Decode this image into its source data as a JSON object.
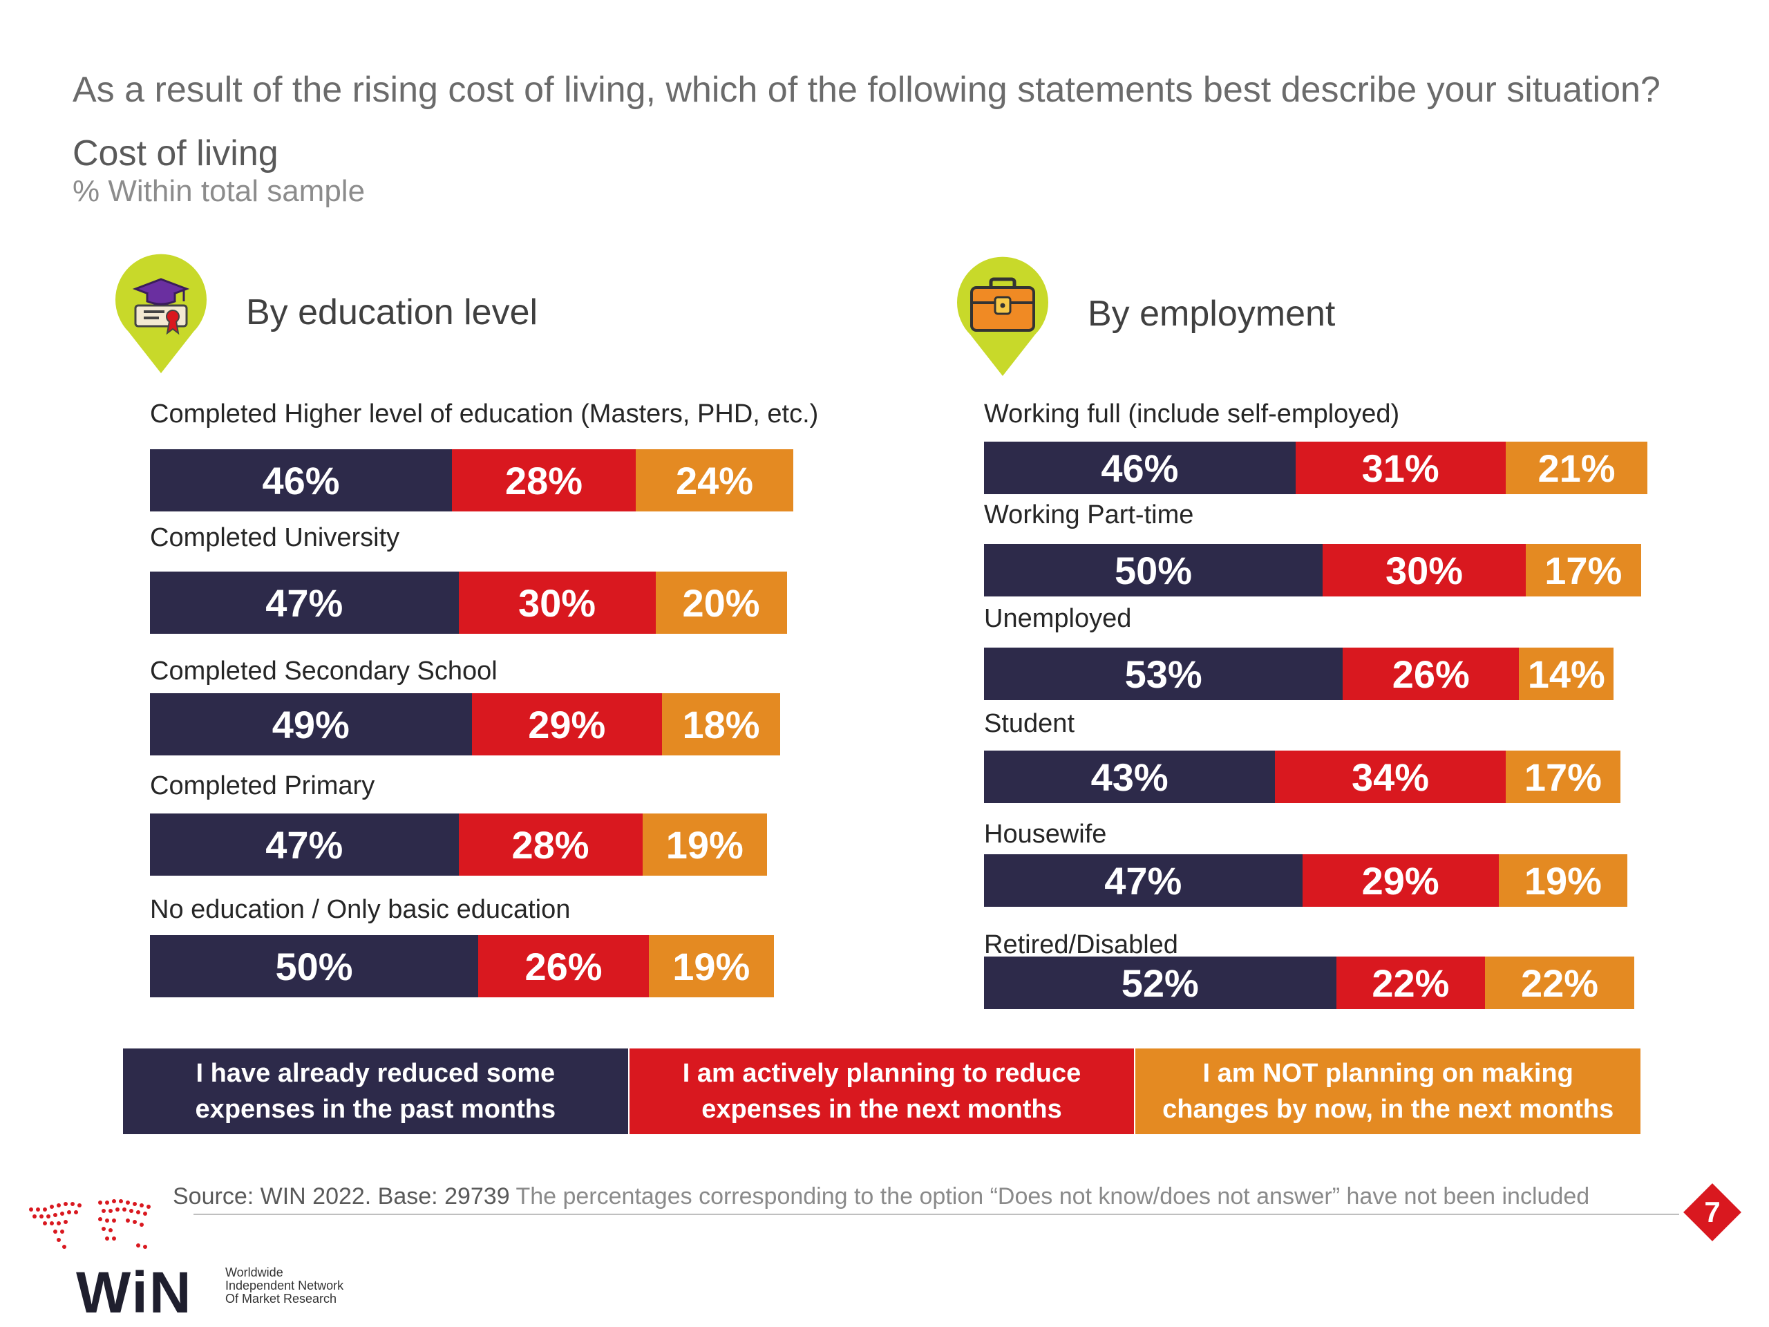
{
  "header": {
    "question": "As a result of the rising cost of living, which of the following statements best describe your situation?",
    "subtitle": "Cost of living",
    "subnote": "% Within total sample"
  },
  "colors": {
    "series_1": "#2d2a4a",
    "series_2": "#d9181f",
    "series_3": "#e48a22",
    "pin": "#c8d92a"
  },
  "panels": {
    "education": {
      "title": "By education level",
      "icon": "graduation-cap-diploma-icon"
    },
    "employment": {
      "title": "By employment",
      "icon": "briefcase-icon"
    }
  },
  "chart_data": [
    {
      "type": "bar",
      "orientation": "horizontal-stacked",
      "title": "By education level",
      "categories": [
        "Completed Higher level of education (Masters, PHD, etc.)",
        "Completed University",
        "Completed Secondary School",
        "Completed Primary",
        "No education / Only basic education"
      ],
      "series": [
        {
          "name": "I have already reduced some expenses in the past months",
          "values": [
            46,
            47,
            49,
            47,
            50
          ]
        },
        {
          "name": "I am actively planning to reduce expenses in the next months",
          "values": [
            28,
            30,
            29,
            28,
            26
          ]
        },
        {
          "name": "I am NOT planning on making changes by now, in the next months",
          "values": [
            24,
            20,
            18,
            19,
            19
          ]
        }
      ],
      "labels": [
        [
          "46%",
          "28%",
          "24%"
        ],
        [
          "47%",
          "30%",
          "20%"
        ],
        [
          "49%",
          "29%",
          "18%"
        ],
        [
          "47%",
          "28%",
          "19%"
        ],
        [
          "50%",
          "26%",
          "19%"
        ]
      ],
      "unit": "%"
    },
    {
      "type": "bar",
      "orientation": "horizontal-stacked",
      "title": "By employment",
      "categories": [
        "Working full (include self-employed)",
        "Working Part-time",
        "Unemployed",
        "Student",
        "Housewife",
        "Retired/Disabled"
      ],
      "series": [
        {
          "name": "I have already reduced some expenses in the past months",
          "values": [
            46,
            50,
            53,
            43,
            47,
            52
          ]
        },
        {
          "name": "I am actively planning to reduce expenses in the next months",
          "values": [
            31,
            30,
            26,
            34,
            29,
            22
          ]
        },
        {
          "name": "I am NOT planning on making changes by now, in the next months",
          "values": [
            21,
            17,
            14,
            17,
            19,
            22
          ]
        }
      ],
      "labels": [
        [
          "46%",
          "31%",
          "21%"
        ],
        [
          "50%",
          "30%",
          "17%"
        ],
        [
          "53%",
          "26%",
          "14%"
        ],
        [
          "43%",
          "34%",
          "17%"
        ],
        [
          "47%",
          "29%",
          "19%"
        ],
        [
          "52%",
          "22%",
          "22%"
        ]
      ],
      "unit": "%"
    }
  ],
  "legend": [
    "I have already reduced some\nexpenses in the past months",
    "I am actively planning to reduce\nexpenses in the next months",
    "I am NOT planning on making\nchanges by now, in the next months"
  ],
  "footer": {
    "source_prefix": "Source: WIN 2022. Base: 29739",
    "source_note": " The percentages corresponding to the option “Does not know/does not answer” have not been included",
    "page_number": "7"
  },
  "logo": {
    "wordmark": "WiN",
    "tagline": "Worldwide\nIndependent Network\nOf Market Research"
  }
}
